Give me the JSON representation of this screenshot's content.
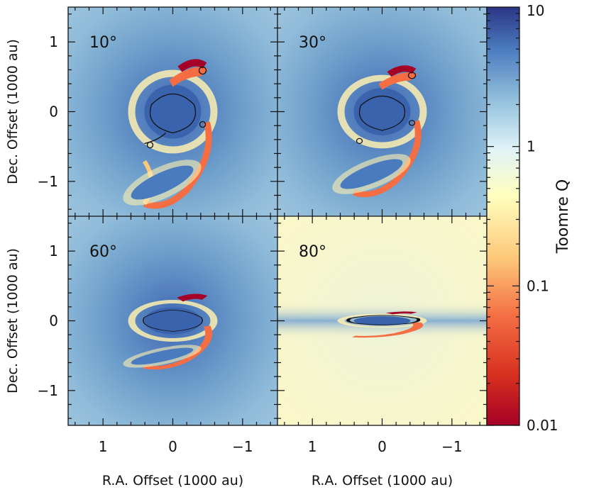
{
  "chart_data": {
    "type": "heatmap",
    "layout": "2x2 grid with shared colorbar",
    "panels": [
      {
        "label": "10°",
        "inclination_deg": 10
      },
      {
        "label": "30°",
        "inclination_deg": 30
      },
      {
        "label": "60°",
        "inclination_deg": 60
      },
      {
        "label": "80°",
        "inclination_deg": 80
      }
    ],
    "xlabel": "R.A. Offset (1000 au)",
    "ylabel": "Dec. Offset (1000 au)",
    "xlim": [
      1.5,
      -1.5
    ],
    "ylim": [
      -1.5,
      1.5
    ],
    "xticks": [
      1,
      0,
      -1
    ],
    "xtick_labels": [
      "1",
      "0",
      "−1"
    ],
    "yticks": [
      1,
      0,
      -1
    ],
    "ytick_labels": [
      "1",
      "0",
      "−1"
    ],
    "colorbar": {
      "label": "Toomre Q",
      "scale": "log",
      "range": [
        0.01,
        10
      ],
      "ticks": [
        10,
        1,
        0.1,
        0.01
      ],
      "tick_labels": [
        "10",
        "1",
        "0.1",
        "0.01"
      ],
      "colormap": "RdYlBu",
      "colors": [
        "#b2182b",
        "#ef8a62",
        "#fee090",
        "#ffffbf",
        "#e0f3f8",
        "#91bfdb",
        "#4575b4",
        "#2c3e8f"
      ]
    },
    "background_q": {
      "10°": 3,
      "30°": 3,
      "60°": 3,
      "80°": 0.3
    },
    "grid": false,
    "legend": "none"
  }
}
